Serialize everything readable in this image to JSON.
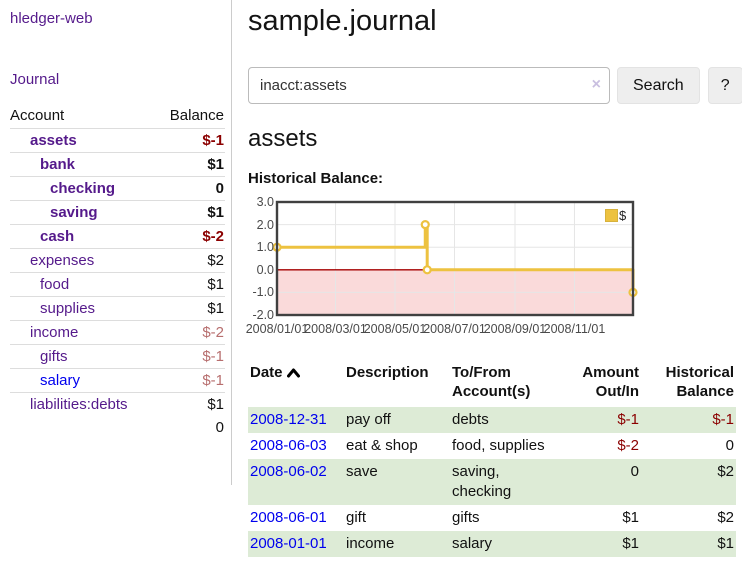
{
  "app": {
    "title": "hledger-web",
    "nav_journal": "Journal"
  },
  "sidebar": {
    "columns": [
      "Account",
      "Balance"
    ],
    "accounts": [
      {
        "name": "assets",
        "depth": 1,
        "balance": "$-1",
        "bold": true,
        "neg": "strong"
      },
      {
        "name": "bank",
        "depth": 2,
        "balance": "$1",
        "bold": true
      },
      {
        "name": "checking",
        "depth": 3,
        "balance": "0",
        "bold": true
      },
      {
        "name": "saving",
        "depth": 3,
        "balance": "$1",
        "bold": true
      },
      {
        "name": "cash",
        "depth": 2,
        "balance": "$-2",
        "bold": true,
        "neg": "strong"
      },
      {
        "name": "expenses",
        "depth": 1,
        "balance": "$2"
      },
      {
        "name": "food",
        "depth": 2,
        "balance": "$1"
      },
      {
        "name": "supplies",
        "depth": 2,
        "balance": "$1"
      },
      {
        "name": "income",
        "depth": 1,
        "balance": "$-2",
        "neg": "soft"
      },
      {
        "name": "gifts",
        "depth": 2,
        "balance": "$-1",
        "neg": "soft"
      },
      {
        "name": "salary",
        "depth": 2,
        "balance": "$-1",
        "neg": "soft",
        "link": "blue"
      },
      {
        "name": "liabilities:debts",
        "depth": 1,
        "balance": "$1"
      }
    ],
    "total": "0"
  },
  "header": {
    "title": "sample.journal"
  },
  "search": {
    "query": "inacct:assets",
    "clear_icon": "×",
    "search_label": "Search",
    "help_label": "?"
  },
  "account_page": {
    "title": "assets",
    "chart_label": "Historical Balance:"
  },
  "chart_data": {
    "type": "line",
    "style": "step-after",
    "title": "Historical Balance",
    "series": [
      {
        "name": "$",
        "color": "#edc240",
        "points": [
          [
            "2008-01-01",
            1
          ],
          [
            "2008-06-01",
            2
          ],
          [
            "2008-06-03",
            0
          ],
          [
            "2008-12-31",
            -1
          ]
        ]
      }
    ],
    "ylim": [
      -2,
      3
    ],
    "xlim": [
      "2008-01-01",
      "2008-12-31"
    ],
    "ytick_labels": [
      "3.0",
      "2.0",
      "1.0",
      "0.0",
      "-1.0",
      "-2.0"
    ],
    "ytick_values": [
      3,
      2,
      1,
      0,
      -1,
      -2
    ],
    "xticks": [
      "2008/01/01",
      "2008/03/01",
      "2008/05/01",
      "2008/07/01",
      "2008/09/01",
      "2008/11/01"
    ],
    "grid": true,
    "legend": {
      "label": "$",
      "position": "top-right"
    },
    "negative_region_fill": "#fadada",
    "zero_line_color": "#a40000",
    "plot_border_color": "#404040",
    "grid_color": "#e6e6e6"
  },
  "transactions": {
    "columns": [
      "Date",
      "Description",
      "To/From Account(s)",
      "Amount Out/In",
      "Historical Balance"
    ],
    "rows": [
      {
        "date": "2008-12-31",
        "description": "pay off",
        "accounts": "debts",
        "amount": "$-1",
        "balance": "$-1",
        "amount_neg": true,
        "balance_neg": true,
        "shaded": true
      },
      {
        "date": "2008-06-03",
        "description": "eat & shop",
        "accounts": "food, supplies",
        "amount": "$-2",
        "balance": "0",
        "amount_neg": true,
        "balance_neg": false,
        "shaded": false
      },
      {
        "date": "2008-06-02",
        "description": "save",
        "accounts": "saving, checking",
        "amount": "0",
        "balance": "$2",
        "amount_neg": false,
        "balance_neg": false,
        "shaded": true
      },
      {
        "date": "2008-06-01",
        "description": "gift",
        "accounts": "gifts",
        "amount": "$1",
        "balance": "$2",
        "amount_neg": false,
        "balance_neg": false,
        "shaded": false
      },
      {
        "date": "2008-01-01",
        "description": "income",
        "accounts": "salary",
        "amount": "$1",
        "balance": "$1",
        "amount_neg": false,
        "balance_neg": false,
        "shaded": true
      }
    ]
  }
}
